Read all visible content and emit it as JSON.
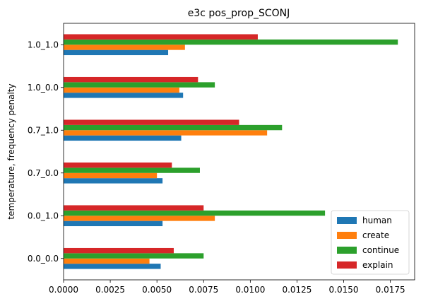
{
  "chart_data": {
    "type": "bar",
    "orientation": "horizontal",
    "title": "e3c pos_prop_SCONJ",
    "xlabel": "",
    "ylabel": "temperature, frequency penalty",
    "categories": [
      "0.0_0.0",
      "0.0_1.0",
      "0.7_0.0",
      "0.7_1.0",
      "1.0_0.0",
      "1.0_1.0"
    ],
    "xlim": [
      0,
      0.0188
    ],
    "xticks": [
      "0.0000",
      "0.0025",
      "0.0050",
      "0.0075",
      "0.0100",
      "0.0125",
      "0.0150",
      "0.0175"
    ],
    "grid": false,
    "legend_position": "lower-right",
    "series": [
      {
        "name": "human",
        "color": "#1f77b4",
        "values": [
          0.0052,
          0.0053,
          0.0053,
          0.0063,
          0.0064,
          0.0056
        ]
      },
      {
        "name": "create",
        "color": "#ff7f0e",
        "values": [
          0.0046,
          0.0081,
          0.005,
          0.0109,
          0.0062,
          0.0065
        ]
      },
      {
        "name": "continue",
        "color": "#2ca02c",
        "values": [
          0.0075,
          0.014,
          0.0073,
          0.0117,
          0.0081,
          0.0179
        ]
      },
      {
        "name": "explain",
        "color": "#d62728",
        "values": [
          0.0059,
          0.0075,
          0.0058,
          0.0094,
          0.0072,
          0.0104
        ]
      }
    ]
  }
}
